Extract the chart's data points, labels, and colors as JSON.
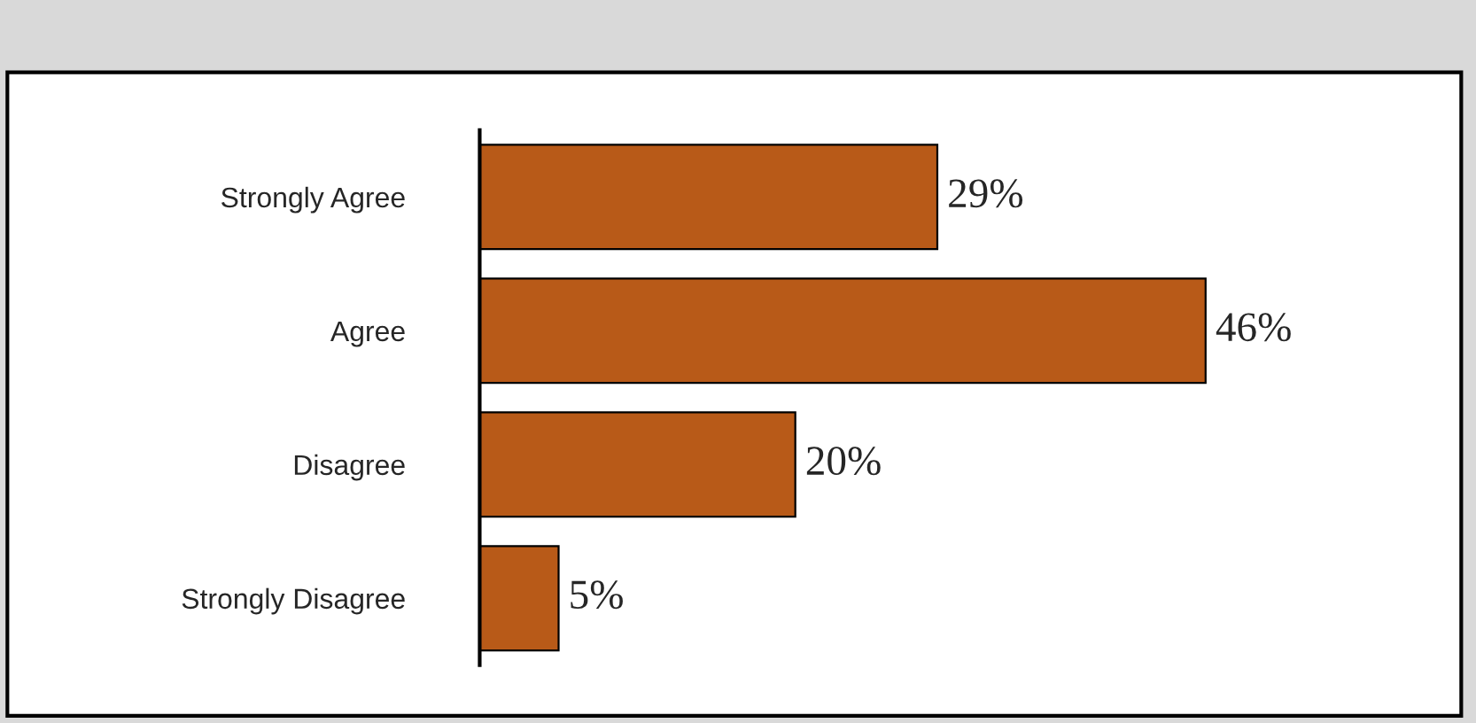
{
  "chart_data": {
    "type": "bar",
    "orientation": "horizontal",
    "categories": [
      "Strongly Agree",
      "Agree",
      "Disagree",
      "Strongly Disagree"
    ],
    "values": [
      29,
      46,
      20,
      5
    ],
    "color": "#b85a18",
    "value_labels": [
      "29%",
      "46%",
      "20%",
      "5%"
    ],
    "grid": false,
    "legend": false
  }
}
